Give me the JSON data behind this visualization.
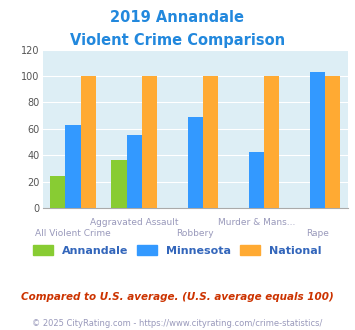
{
  "title_line1": "2019 Annandale",
  "title_line2": "Violent Crime Comparison",
  "title_color": "#2288dd",
  "groups": [
    {
      "label_top": "",
      "label_bot": "All Violent Crime",
      "annandale": 24,
      "minnesota": 63,
      "national": 100
    },
    {
      "label_top": "Aggravated Assault",
      "label_bot": "",
      "annandale": 36,
      "minnesota": 55,
      "national": 100
    },
    {
      "label_top": "",
      "label_bot": "Robbery",
      "annandale": 0,
      "minnesota": 69,
      "national": 100
    },
    {
      "label_top": "Murder & Mans...",
      "label_bot": "",
      "annandale": 0,
      "minnesota": 42,
      "national": 100
    },
    {
      "label_top": "",
      "label_bot": "Rape",
      "annandale": 0,
      "minnesota": 103,
      "national": 100
    }
  ],
  "color_annandale": "#88cc33",
  "color_minnesota": "#3399ff",
  "color_national": "#ffaa33",
  "legend_labels": [
    "Annandale",
    "Minnesota",
    "National"
  ],
  "legend_colors": [
    "#88cc33",
    "#3399ff",
    "#ffaa33"
  ],
  "legend_text_color": "#3366bb",
  "ylim": [
    0,
    120
  ],
  "yticks": [
    0,
    20,
    40,
    60,
    80,
    100,
    120
  ],
  "bg_color": "#ddeef5",
  "fig_bg": "#ffffff",
  "grid_color": "#ffffff",
  "footnote1": "Compared to U.S. average. (U.S. average equals 100)",
  "footnote2": "© 2025 CityRating.com - https://www.cityrating.com/crime-statistics/",
  "footnote1_color": "#cc3300",
  "footnote2_color": "#9999bb",
  "xlabel_color": "#9999bb",
  "bar_width": 0.25,
  "title_fontsize": 10.5,
  "ytick_fontsize": 7,
  "xlabel_fontsize": 6.5,
  "legend_fontsize": 8,
  "footnote1_fontsize": 7.5,
  "footnote2_fontsize": 6
}
